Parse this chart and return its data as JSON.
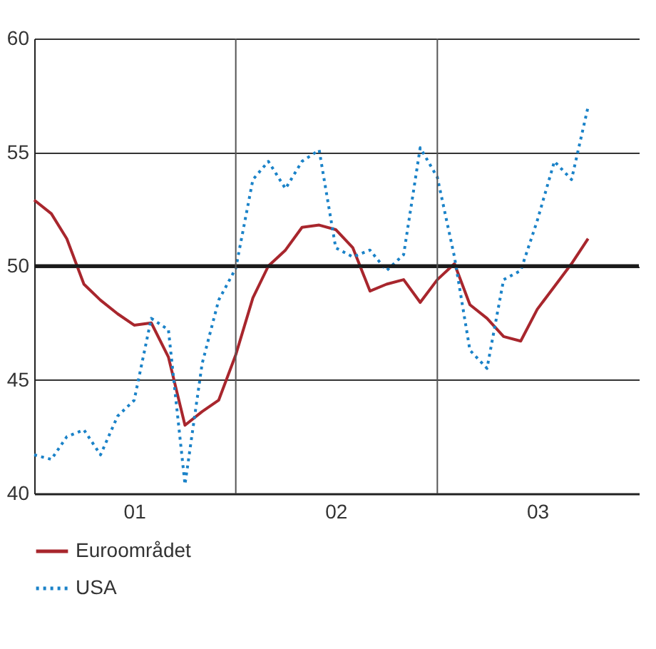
{
  "chart_data": {
    "type": "line",
    "x": [
      "2001-01",
      "2001-02",
      "2001-03",
      "2001-04",
      "2001-05",
      "2001-06",
      "2001-07",
      "2001-08",
      "2001-09",
      "2001-10",
      "2001-11",
      "2001-12",
      "2002-01",
      "2002-02",
      "2002-03",
      "2002-04",
      "2002-05",
      "2002-06",
      "2002-07",
      "2002-08",
      "2002-09",
      "2002-10",
      "2002-11",
      "2002-12",
      "2003-01",
      "2003-02",
      "2003-03",
      "2003-04",
      "2003-05",
      "2003-06",
      "2003-07",
      "2003-08",
      "2003-09",
      "2003-10"
    ],
    "series": [
      {
        "name": "Euroområdet",
        "color": "#a8262d",
        "line_style": "solid",
        "values": [
          52.9,
          52.3,
          51.2,
          49.2,
          48.5,
          47.9,
          47.4,
          47.5,
          46.0,
          43.0,
          43.6,
          44.1,
          46.1,
          48.6,
          50.0,
          50.7,
          51.7,
          51.8,
          51.6,
          50.8,
          48.9,
          49.2,
          49.4,
          48.4,
          49.4,
          50.1,
          48.3,
          47.7,
          46.9,
          46.7,
          48.1,
          49.1,
          50.1,
          51.2
        ]
      },
      {
        "name": "USA",
        "color": "#1a82c8",
        "line_style": "dotted",
        "values": [
          41.7,
          41.5,
          42.5,
          42.8,
          41.7,
          43.4,
          44.1,
          47.7,
          47.2,
          40.4,
          45.7,
          48.5,
          49.9,
          53.8,
          54.6,
          53.4,
          54.6,
          55.1,
          50.8,
          50.4,
          50.7,
          49.8,
          50.5,
          55.2,
          53.9,
          50.4,
          46.3,
          45.5,
          49.4,
          49.8,
          52.0,
          54.6,
          53.8,
          57.0
        ]
      }
    ],
    "xlim": [
      "2001-01",
      "2004-01"
    ],
    "xticks": [
      {
        "value": "2001-07",
        "label": "01"
      },
      {
        "value": "2002-07",
        "label": "02"
      },
      {
        "value": "2003-07",
        "label": "03"
      }
    ],
    "ylim": [
      40,
      60
    ],
    "yticks": [
      40,
      45,
      50,
      55,
      60
    ],
    "grid": "y",
    "legend": "bottom left",
    "ref_lines": [
      {
        "axis": "y",
        "value": 50,
        "color": "#1a1a1a"
      },
      {
        "axis": "x",
        "value": "2002-01",
        "color": "#555555"
      },
      {
        "axis": "x",
        "value": "2003-01",
        "color": "#555555"
      }
    ]
  }
}
